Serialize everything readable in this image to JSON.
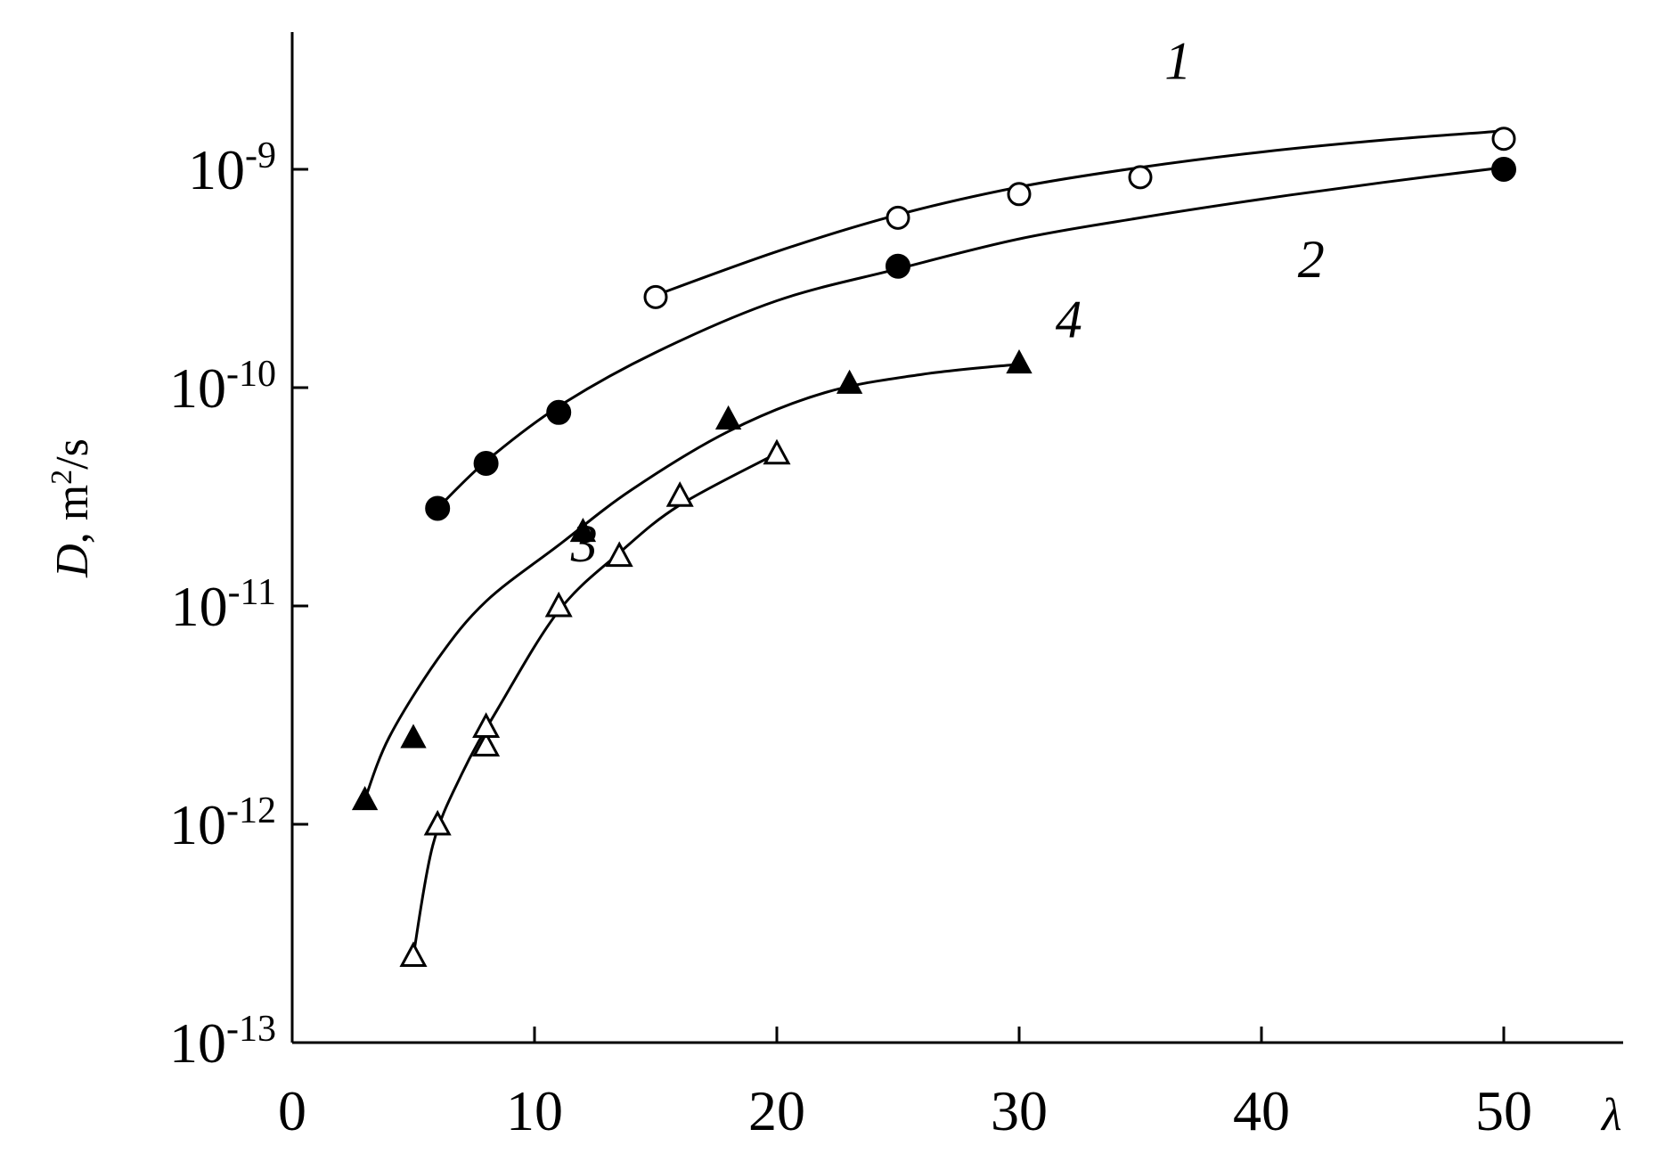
{
  "chart_data": {
    "type": "scatter",
    "title": "",
    "xlabel": "λ",
    "ylabel": "D, m²/s",
    "ylabel_parts": {
      "symbol": "D",
      "unit_prefix": ", m",
      "unit_sup": "2",
      "unit_suffix": "/s"
    },
    "xscale": "linear",
    "yscale": "log",
    "xlim": [
      0,
      55
    ],
    "ylim": [
      1e-13,
      6e-09
    ],
    "grid": false,
    "legend": "none (curves labeled inline with numbers)",
    "x_ticks": [
      {
        "value": 0,
        "label": "0"
      },
      {
        "value": 10,
        "label": "10"
      },
      {
        "value": 20,
        "label": "20"
      },
      {
        "value": 30,
        "label": "30"
      },
      {
        "value": 40,
        "label": "40"
      },
      {
        "value": 50,
        "label": "50"
      }
    ],
    "y_ticks": [
      {
        "value": 1e-13,
        "base": "10",
        "exp": "-13"
      },
      {
        "value": 1e-12,
        "base": "10",
        "exp": "-12"
      },
      {
        "value": 1e-11,
        "base": "10",
        "exp": "-11"
      },
      {
        "value": 1e-10,
        "base": "10",
        "exp": "-10"
      },
      {
        "value": 1e-09,
        "base": "10",
        "exp": "-9"
      }
    ],
    "series": [
      {
        "label": "1",
        "marker": "open-circle",
        "label_at": [
          36,
          2.6e-09
        ],
        "x": [
          15,
          25,
          30,
          35,
          50
        ],
        "y": [
          2.6e-10,
          6e-10,
          7.7e-10,
          9.2e-10,
          1.38e-09
        ],
        "curve": {
          "x": [
            15,
            20,
            25,
            30,
            35,
            40,
            45,
            50
          ],
          "y": [
            2.65e-10,
            4.2e-10,
            6.2e-10,
            8.3e-10,
            1.02e-09,
            1.2e-09,
            1.36e-09,
            1.5e-09
          ]
        }
      },
      {
        "label": "2",
        "marker": "filled-circle",
        "label_at": [
          41.5,
          3.2e-10
        ],
        "x": [
          6,
          8,
          11,
          25,
          50
        ],
        "y": [
          2.8e-11,
          4.5e-11,
          7.7e-11,
          3.6e-10,
          1e-09
        ],
        "curve": {
          "x": [
            6,
            8,
            11,
            15,
            20,
            25,
            30,
            35,
            40,
            45,
            50
          ],
          "y": [
            2.8e-11,
            4.6e-11,
            8.2e-11,
            1.45e-10,
            2.5e-10,
            3.5e-10,
            4.8e-10,
            6e-10,
            7.3e-10,
            8.7e-10,
            1.02e-09
          ]
        }
      },
      {
        "label": "3",
        "marker": "open-triangle",
        "label_at": [
          11.5,
          1.6e-11
        ],
        "x": [
          5,
          6,
          8,
          8,
          11,
          13.5,
          16,
          20
        ],
        "y": [
          2.5e-13,
          1e-12,
          2.3e-12,
          2.8e-12,
          1e-11,
          1.7e-11,
          3.2e-11,
          5e-11
        ],
        "curve": {
          "x": [
            5,
            5.8,
            7,
            8.5,
            11,
            13.5,
            16,
            20
          ],
          "y": [
            2.5e-13,
            8e-13,
            1.7e-12,
            3.4e-12,
            9.5e-12,
            1.75e-11,
            2.9e-11,
            5e-11
          ]
        }
      },
      {
        "label": "4",
        "marker": "filled-triangle",
        "label_at": [
          31.5,
          1.7e-10
        ],
        "x": [
          3,
          5,
          12,
          18,
          23,
          30
        ],
        "y": [
          1.3e-12,
          2.5e-12,
          2.2e-11,
          7.2e-11,
          1.05e-10,
          1.3e-10
        ],
        "curve": {
          "x": [
            3,
            4,
            6,
            8,
            11,
            14,
            18,
            22,
            26,
            30
          ],
          "y": [
            1.3e-12,
            2.5e-12,
            5.7e-12,
            1.05e-11,
            1.9e-11,
            3.4e-11,
            6.3e-11,
            9.5e-11,
            1.15e-10,
            1.28e-10
          ]
        }
      }
    ]
  }
}
